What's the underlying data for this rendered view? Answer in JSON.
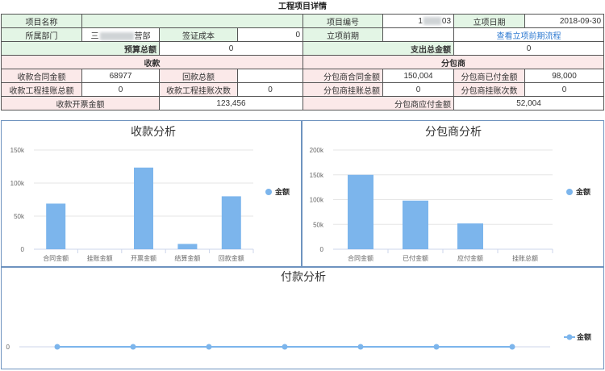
{
  "page_title": "工程项目详情",
  "info": {
    "project_name_label": "项目名称",
    "project_name_value": "",
    "project_no_label": "项目编号",
    "project_no_prefix": "1",
    "project_no_suffix": "03",
    "setup_date_label": "立项日期",
    "setup_date_value": "2018-09-30",
    "dept_label": "所属部门",
    "dept_prefix": "三",
    "dept_suffix": "营部",
    "visa_cost_label": "签证成本",
    "visa_cost_value": "0",
    "pre_setup_label": "立项前期",
    "pre_setup_value": "",
    "pre_setup_link": "查看立项前期流程",
    "budget_label": "预算总额",
    "budget_value": "0",
    "expense_label": "支出总金额",
    "expense_value": "0",
    "receipt_header": "收款",
    "sub_header": "分包商",
    "rc_contract_label": "收款合同金额",
    "rc_contract_value": "68977",
    "payback_label": "回款总额",
    "payback_value": "",
    "sub_contract_label": "分包商合同金额",
    "sub_contract_value": "150,004",
    "sub_paid_label": "分包商已付金额",
    "sub_paid_value": "98,000",
    "rc_hang_label": "收款工程挂账总额",
    "rc_hang_value": "0",
    "rc_hang_count_label": "收款工程挂账次数",
    "rc_hang_count_value": "0",
    "sub_hang_label": "分包商挂账总额",
    "sub_hang_value": "0",
    "sub_hang_count_label": "分包商挂账次数",
    "sub_hang_count_value": "0",
    "rc_invoice_label": "收款开票金额",
    "rc_invoice_value": "123,456",
    "sub_payable_label": "分包商应付金额",
    "sub_payable_value": "52,004"
  },
  "colors": {
    "bar": "#7cb5ec",
    "axis": "#ccd6eb",
    "grid": "#e6e6e6",
    "line": "#7cb5ec",
    "panel_border": "#6e93bf"
  },
  "chart_data": [
    {
      "type": "bar",
      "title": "收款分析",
      "categories": [
        "合同金额",
        "挂账金额",
        "开票金额",
        "结算金额",
        "回款金额"
      ],
      "series": [
        {
          "name": "金额",
          "values": [
            68977,
            0,
            123456,
            8000,
            80000
          ]
        }
      ],
      "yticks": [
        "0",
        "50k",
        "100k",
        "150k"
      ],
      "ylim": [
        0,
        150000
      ],
      "legend": "right"
    },
    {
      "type": "bar",
      "title": "分包商分析",
      "categories": [
        "合同金额",
        "已付金额",
        "应付金额",
        "挂账总额"
      ],
      "series": [
        {
          "name": "金额",
          "values": [
            150004,
            98000,
            52004,
            0
          ]
        }
      ],
      "yticks": [
        "0",
        "50k",
        "100k",
        "150k",
        "200k"
      ],
      "ylim": [
        0,
        200000
      ],
      "legend": "right"
    },
    {
      "type": "line",
      "title": "付款分析",
      "x": [
        "",
        "",
        "",
        "",
        "",
        "",
        ""
      ],
      "series": [
        {
          "name": "金额",
          "values": [
            0,
            0,
            0,
            0,
            0,
            0,
            0
          ]
        }
      ],
      "yticks": [
        "0"
      ],
      "legend": "right"
    }
  ]
}
